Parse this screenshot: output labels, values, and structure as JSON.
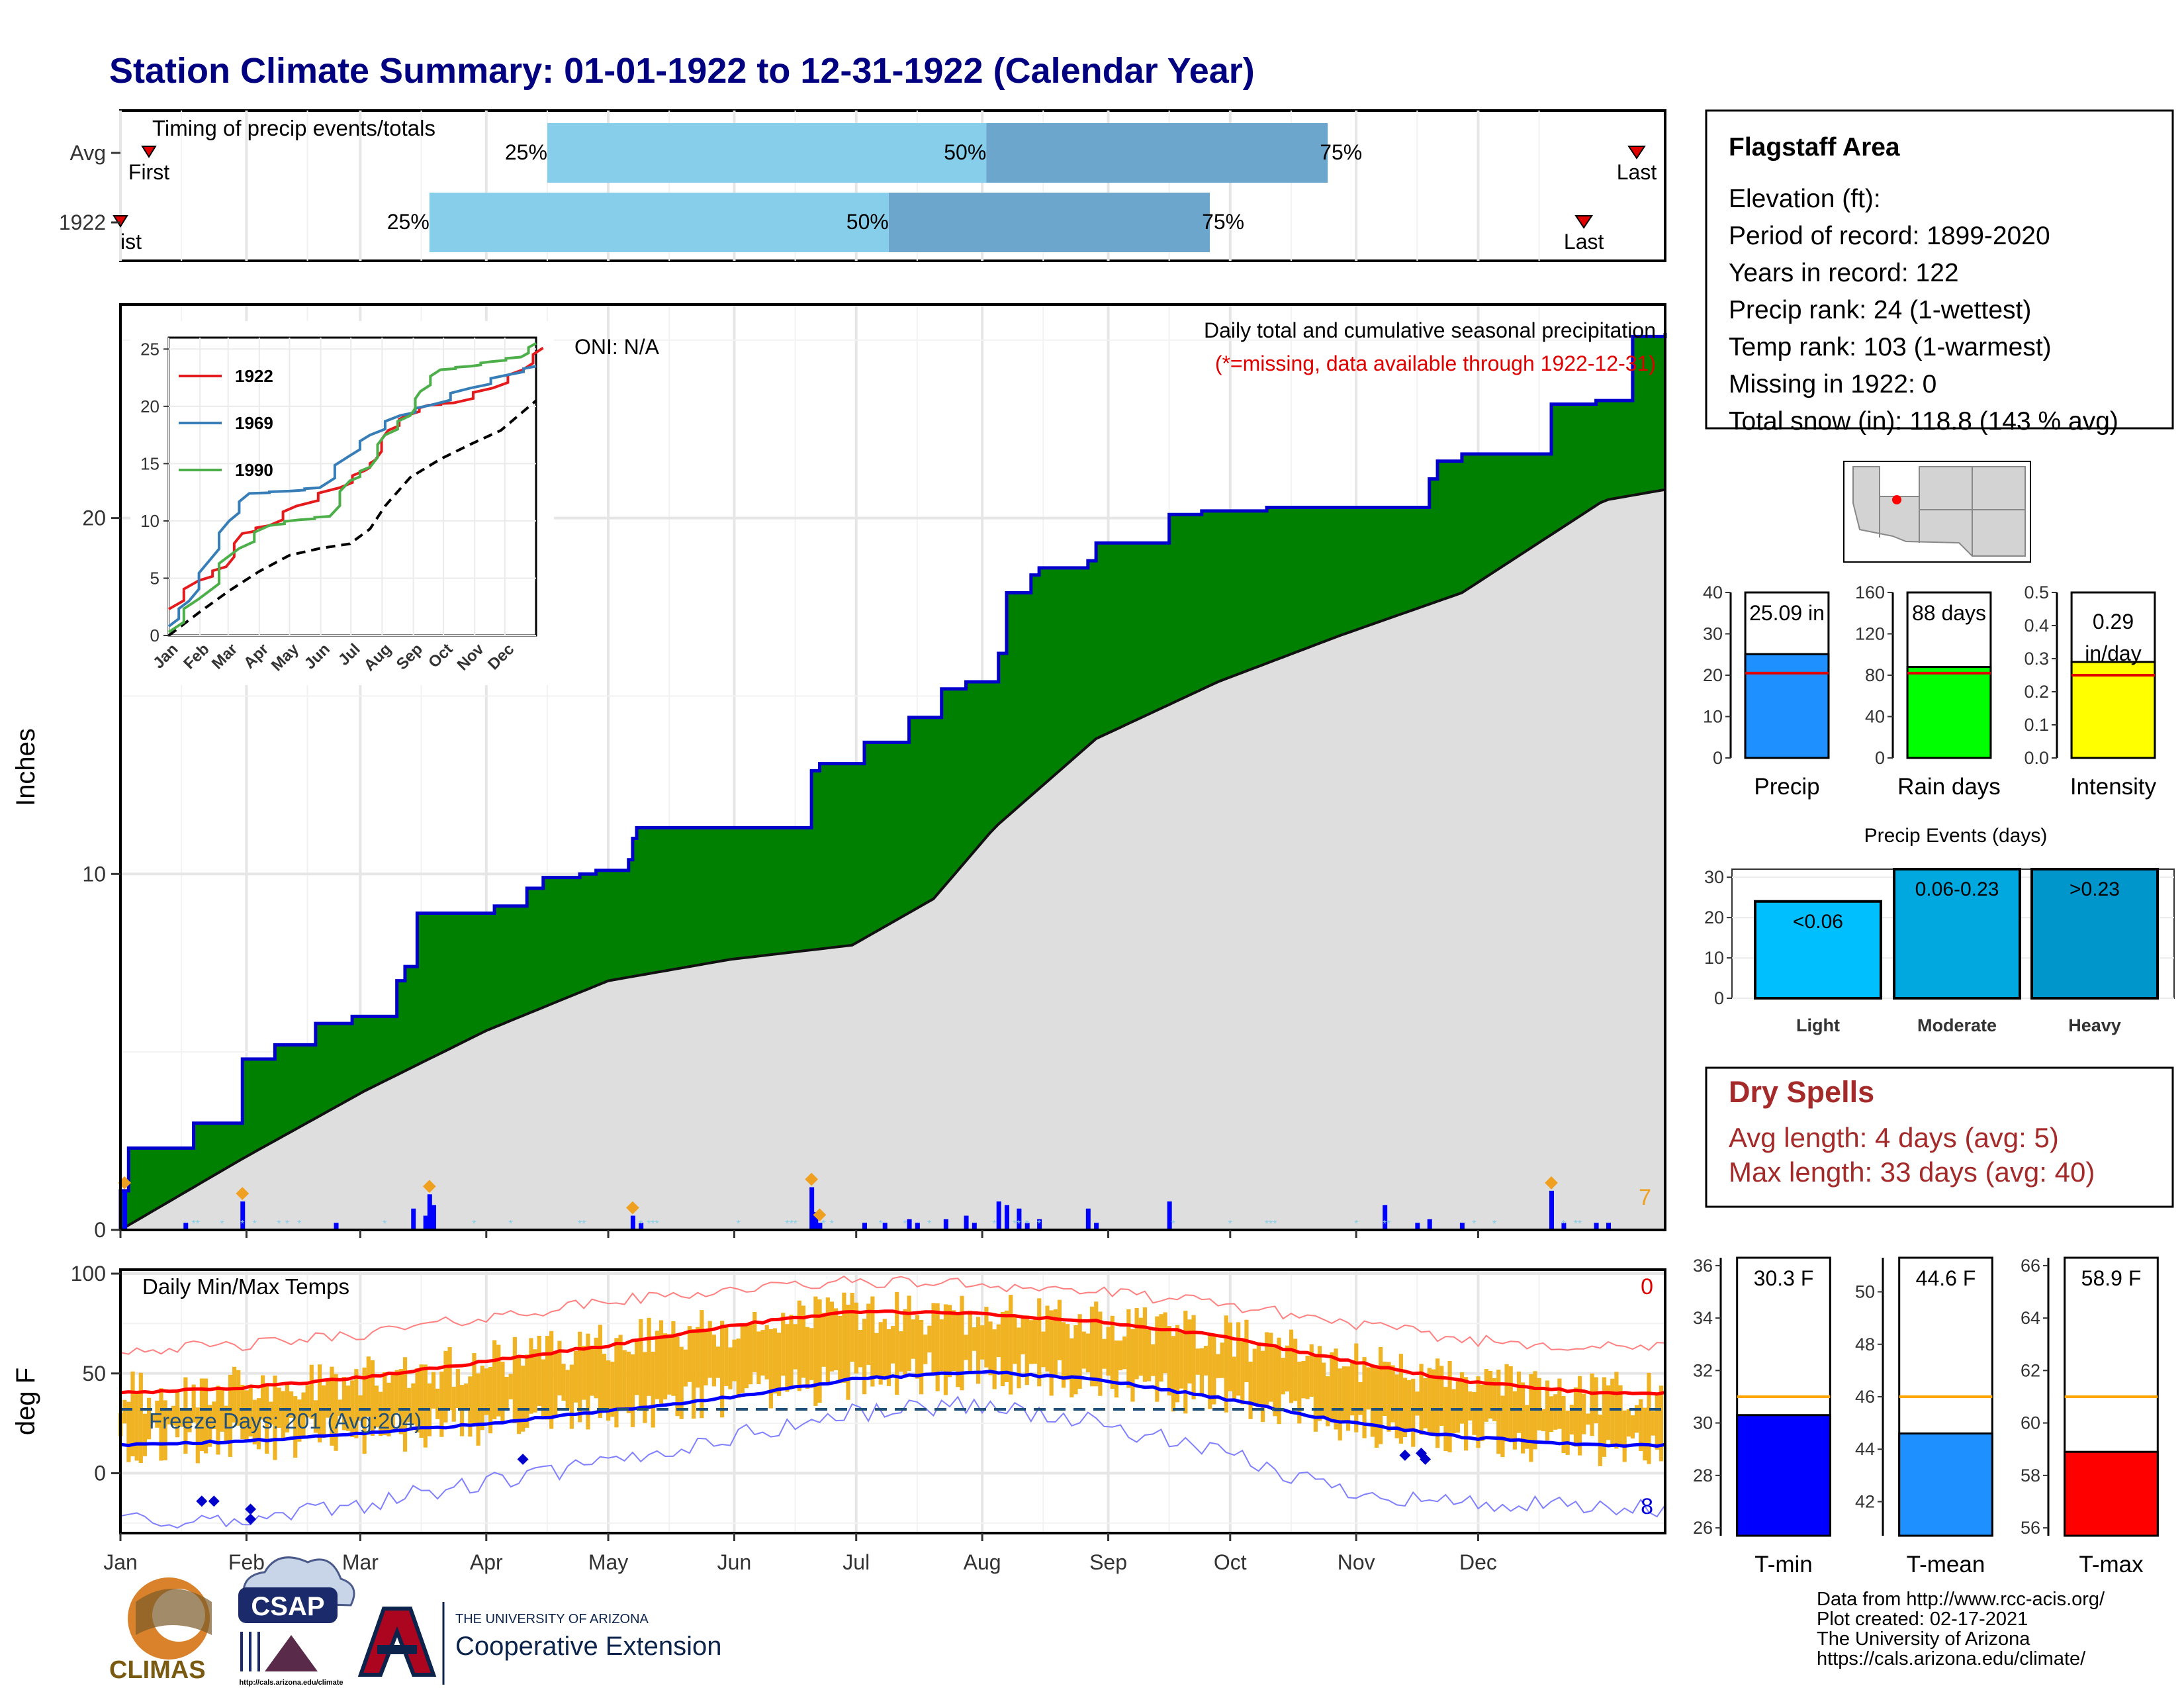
{
  "header": {
    "title": "Station Climate Summary: 01-01-1922 to 12-31-1922 (Calendar Year)"
  },
  "timing": {
    "title": "Timing of precip events/totals",
    "rows": [
      {
        "label": "Avg",
        "first": 7,
        "p25": 105,
        "p50": 213,
        "p75": 297,
        "last": 373,
        "first_label": "First",
        "last_label": "Last"
      },
      {
        "label": "1922",
        "first": 0,
        "p25": 76,
        "p50": 189,
        "p75": 268,
        "last": 360,
        "first_label": "ist",
        "last_label": "Last"
      }
    ],
    "pct_labels": [
      "25%",
      "50%",
      "75%"
    ]
  },
  "chart_data": [
    {
      "type": "area",
      "name": "cumulative-precip",
      "title": "Daily total and cumulative seasonal precipitation",
      "subtitle": "(*=missing, data available through 1922-12-31)",
      "ylabel": "Inches",
      "ylim": [
        0,
        26
      ],
      "yticks": [
        0,
        10,
        20
      ],
      "oni_label": "ONI: N/A",
      "corner_count": "7",
      "months": [
        "Jan",
        "Feb",
        "Mar",
        "Apr",
        "May",
        "Jun",
        "Jul",
        "Aug",
        "Sep",
        "Oct",
        "Nov",
        "Dec"
      ],
      "cumulative_steps": [
        [
          0,
          1.1
        ],
        [
          2,
          2.3
        ],
        [
          18,
          3.0
        ],
        [
          30,
          4.8
        ],
        [
          38,
          5.2
        ],
        [
          48,
          5.8
        ],
        [
          57,
          6.0
        ],
        [
          68,
          7.0
        ],
        [
          70,
          7.4
        ],
        [
          73,
          8.9
        ],
        [
          92,
          9.1
        ],
        [
          100,
          9.6
        ],
        [
          104,
          9.9
        ],
        [
          113,
          10.0
        ],
        [
          117,
          10.1
        ],
        [
          125,
          10.4
        ],
        [
          126,
          11.0
        ],
        [
          127,
          11.3
        ],
        [
          170,
          12.9
        ],
        [
          172,
          13.1
        ],
        [
          183,
          13.7
        ],
        [
          194,
          14.4
        ],
        [
          202,
          15.2
        ],
        [
          208,
          15.4
        ],
        [
          216,
          16.2
        ],
        [
          218,
          17.9
        ],
        [
          224,
          18.4
        ],
        [
          226,
          18.6
        ],
        [
          238,
          18.8
        ],
        [
          240,
          19.3
        ],
        [
          258,
          20.1
        ],
        [
          266,
          20.2
        ],
        [
          282,
          20.3
        ],
        [
          322,
          21.1
        ],
        [
          324,
          21.6
        ],
        [
          330,
          21.8
        ],
        [
          352,
          23.2
        ],
        [
          363,
          23.3
        ],
        [
          372,
          25.1
        ],
        [
          380,
          25.2
        ]
      ],
      "normal_cumulative": [
        [
          0,
          0
        ],
        [
          30,
          2.0
        ],
        [
          60,
          3.9
        ],
        [
          90,
          5.6
        ],
        [
          120,
          7.0
        ],
        [
          150,
          7.6
        ],
        [
          180,
          8.0
        ],
        [
          200,
          9.3
        ],
        [
          215,
          11.3
        ],
        [
          240,
          13.8
        ],
        [
          270,
          15.4
        ],
        [
          300,
          16.7
        ],
        [
          330,
          17.9
        ],
        [
          365,
          20.5
        ]
      ],
      "daily_bars": [
        [
          1,
          1.1
        ],
        [
          16,
          0.2
        ],
        [
          30,
          0.8
        ],
        [
          53,
          0.2
        ],
        [
          72,
          0.6
        ],
        [
          75,
          0.4
        ],
        [
          76,
          1.0
        ],
        [
          77,
          0.7
        ],
        [
          126,
          0.4
        ],
        [
          128,
          0.2
        ],
        [
          170,
          1.2
        ],
        [
          171,
          0.5
        ],
        [
          172,
          0.2
        ],
        [
          183,
          0.2
        ],
        [
          188,
          0.2
        ],
        [
          194,
          0.3
        ],
        [
          196,
          0.2
        ],
        [
          203,
          0.3
        ],
        [
          208,
          0.4
        ],
        [
          210,
          0.2
        ],
        [
          216,
          0.8
        ],
        [
          218,
          0.7
        ],
        [
          221,
          0.6
        ],
        [
          223,
          0.2
        ],
        [
          226,
          0.3
        ],
        [
          238,
          0.6
        ],
        [
          240,
          0.2
        ],
        [
          258,
          0.8
        ],
        [
          311,
          0.7
        ],
        [
          319,
          0.2
        ],
        [
          322,
          0.3
        ],
        [
          330,
          0.2
        ],
        [
          352,
          1.1
        ],
        [
          355,
          0.2
        ],
        [
          363,
          0.2
        ],
        [
          366,
          0.2
        ]
      ]
    },
    {
      "type": "line",
      "name": "cumulative-inset",
      "ylim": [
        0,
        26
      ],
      "yticks": [
        0,
        5,
        10,
        15,
        20,
        25
      ],
      "months": [
        "Jan",
        "Feb",
        "Mar",
        "Apr",
        "May",
        "Jun",
        "Jul",
        "Aug",
        "Sep",
        "Oct",
        "Nov",
        "Dec"
      ],
      "series": [
        {
          "name": "1922",
          "color": "#e41a1c",
          "points": [
            [
              0,
              2.3
            ],
            [
              30,
              4.8
            ],
            [
              57,
              6.0
            ],
            [
              73,
              8.9
            ],
            [
              100,
              9.6
            ],
            [
              127,
              11.3
            ],
            [
              170,
              12.9
            ],
            [
              195,
              14.4
            ],
            [
              205,
              15.3
            ],
            [
              218,
              17.9
            ],
            [
              240,
              19.3
            ],
            [
              258,
              20.1
            ],
            [
              283,
              20.3
            ],
            [
              322,
              21.6
            ],
            [
              352,
              23.2
            ],
            [
              372,
              25.1
            ]
          ]
        },
        {
          "name": "1969",
          "color": "#377eb8",
          "points": [
            [
              0,
              0.8
            ],
            [
              20,
              3.0
            ],
            [
              40,
              6.5
            ],
            [
              60,
              10.0
            ],
            [
              80,
              12.4
            ],
            [
              120,
              12.6
            ],
            [
              150,
              12.9
            ],
            [
              180,
              15.7
            ],
            [
              200,
              17.5
            ],
            [
              230,
              19.2
            ],
            [
              260,
              20.1
            ],
            [
              300,
              21.6
            ],
            [
              340,
              22.8
            ],
            [
              365,
              23.5
            ]
          ]
        },
        {
          "name": "1990",
          "color": "#4daf4a",
          "points": [
            [
              0,
              0.3
            ],
            [
              30,
              3.2
            ],
            [
              70,
              7.6
            ],
            [
              100,
              9.6
            ],
            [
              130,
              10.1
            ],
            [
              160,
              10.4
            ],
            [
              180,
              13.5
            ],
            [
              200,
              14.7
            ],
            [
              215,
              17.5
            ],
            [
              240,
              19.2
            ],
            [
              250,
              21.3
            ],
            [
              270,
              23.2
            ],
            [
              300,
              23.5
            ],
            [
              320,
              23.9
            ],
            [
              350,
              24.3
            ],
            [
              365,
              25.5
            ]
          ]
        }
      ],
      "normal": [
        [
          0,
          0
        ],
        [
          30,
          2.0
        ],
        [
          60,
          3.9
        ],
        [
          90,
          5.6
        ],
        [
          120,
          7.0
        ],
        [
          150,
          7.6
        ],
        [
          180,
          8.0
        ],
        [
          200,
          9.3
        ],
        [
          215,
          11.3
        ],
        [
          240,
          13.8
        ],
        [
          270,
          15.4
        ],
        [
          300,
          16.7
        ],
        [
          330,
          17.9
        ],
        [
          365,
          20.5
        ]
      ]
    },
    {
      "type": "line",
      "name": "daily-temps",
      "title": "Daily Min/Max Temps",
      "ylabel": "deg F",
      "ylim": [
        -30,
        102
      ],
      "yticks": [
        0,
        50,
        100
      ],
      "freeze_label": "Freeze Days: 201 (Avg:204)",
      "freeze_line": 32,
      "corner_max_count": "0",
      "corner_min_count": "8",
      "months": [
        "Jan",
        "Feb",
        "Mar",
        "Apr",
        "May",
        "Jun",
        "Jul",
        "Aug",
        "Sep",
        "Oct",
        "Nov",
        "Dec"
      ],
      "normal_max": [
        [
          0,
          40
        ],
        [
          30,
          43
        ],
        [
          60,
          48
        ],
        [
          90,
          56
        ],
        [
          120,
          64
        ],
        [
          150,
          74
        ],
        [
          180,
          81
        ],
        [
          210,
          80
        ],
        [
          240,
          76
        ],
        [
          270,
          69
        ],
        [
          300,
          57
        ],
        [
          330,
          46
        ],
        [
          365,
          40
        ]
      ],
      "normal_min": [
        [
          0,
          14
        ],
        [
          30,
          16
        ],
        [
          60,
          20
        ],
        [
          90,
          25
        ],
        [
          120,
          31
        ],
        [
          150,
          38
        ],
        [
          180,
          47
        ],
        [
          210,
          51
        ],
        [
          240,
          47
        ],
        [
          270,
          38
        ],
        [
          300,
          26
        ],
        [
          330,
          18
        ],
        [
          365,
          14
        ]
      ],
      "record_max": [
        [
          0,
          62
        ],
        [
          30,
          64
        ],
        [
          60,
          70
        ],
        [
          90,
          78
        ],
        [
          120,
          86
        ],
        [
          150,
          92
        ],
        [
          180,
          96
        ],
        [
          210,
          95
        ],
        [
          240,
          91
        ],
        [
          270,
          85
        ],
        [
          300,
          76
        ],
        [
          330,
          67
        ],
        [
          365,
          63
        ]
      ],
      "record_min": [
        [
          0,
          -22
        ],
        [
          30,
          -25
        ],
        [
          60,
          -15
        ],
        [
          90,
          -5
        ],
        [
          120,
          5
        ],
        [
          150,
          18
        ],
        [
          180,
          30
        ],
        [
          210,
          35
        ],
        [
          240,
          25
        ],
        [
          270,
          10
        ],
        [
          300,
          -8
        ],
        [
          330,
          -15
        ],
        [
          365,
          -18
        ]
      ],
      "missing_marks": [
        [
          20,
          -14
        ],
        [
          23,
          -14
        ],
        [
          32,
          -18
        ],
        [
          32,
          -23
        ],
        [
          99,
          7
        ],
        [
          316,
          9
        ],
        [
          320,
          10
        ],
        [
          321,
          7
        ]
      ]
    },
    {
      "type": "bar",
      "name": "precip-total",
      "categories": [
        "Precip"
      ],
      "values": [
        25.09
      ],
      "normal": 20.5,
      "value_label": "25.09 in",
      "ylim": [
        0,
        40
      ],
      "yticks": [
        0,
        10,
        20,
        30,
        40
      ],
      "color": "#1e90ff"
    },
    {
      "type": "bar",
      "name": "rain-days",
      "categories": [
        "Rain days"
      ],
      "values": [
        88
      ],
      "normal": 82,
      "value_label": "88 days",
      "ylim": [
        0,
        160
      ],
      "yticks": [
        0,
        40,
        80,
        120,
        160
      ],
      "color": "#00ff00"
    },
    {
      "type": "bar",
      "name": "intensity",
      "categories": [
        "Intensity"
      ],
      "values": [
        0.29
      ],
      "normal": 0.25,
      "value_label_1": "0.29",
      "value_label_2": "in/day",
      "ylim": [
        0,
        0.5
      ],
      "yticks": [
        0.0,
        0.1,
        0.2,
        0.3,
        0.4,
        0.5
      ],
      "color": "#ffff00"
    },
    {
      "type": "bar",
      "name": "precip-events",
      "title": "Precip Events (days)",
      "categories": [
        "Light",
        "Moderate",
        "Heavy"
      ],
      "values": [
        24,
        33,
        33
      ],
      "bar_labels": [
        "<0.06",
        "0.06-0.23",
        ">0.23"
      ],
      "colors": [
        "#00bfff",
        "#00a8e0",
        "#0096cc"
      ],
      "ylim": [
        0,
        32
      ],
      "yticks": [
        0,
        10,
        20,
        30
      ]
    },
    {
      "type": "bar",
      "name": "t-min",
      "categories": [
        "T-min"
      ],
      "values": [
        30.3
      ],
      "normal": 31.0,
      "value_label": "30.3 F",
      "ylim": [
        25.7,
        36.3
      ],
      "yticks": [
        26,
        28,
        30,
        32,
        34,
        36
      ],
      "color": "#0000ff"
    },
    {
      "type": "bar",
      "name": "t-mean",
      "categories": [
        "T-mean"
      ],
      "values": [
        44.6
      ],
      "normal": 46.0,
      "value_label": "44.6 F",
      "ylim": [
        40.7,
        51.3
      ],
      "yticks": [
        42,
        44,
        46,
        48,
        50
      ],
      "color": "#1e90ff"
    },
    {
      "type": "bar",
      "name": "t-max",
      "categories": [
        "T-max"
      ],
      "values": [
        58.9
      ],
      "normal": 61.0,
      "value_label": "58.9 F",
      "ylim": [
        55.7,
        66.3
      ],
      "yticks": [
        56,
        58,
        60,
        62,
        64,
        66
      ],
      "color": "#ff0000"
    }
  ],
  "station": {
    "name": "Flagstaff Area",
    "lines": [
      "Elevation (ft):",
      "Period of record: 1899-2020",
      "Years in record: 122",
      "Precip rank: 24 (1-wettest)",
      "Temp rank: 103 (1-warmest)",
      "Missing in 1922: 0",
      "Total snow (in): 118.8 (143 % avg)"
    ]
  },
  "dry_spells": {
    "title": "Dry Spells",
    "lines": [
      "Avg length: 4 days (avg: 5)",
      "Max length: 33 days (avg: 40)"
    ]
  },
  "footer": {
    "logos": {
      "climas": "CLIMAS",
      "csap": "CSAP",
      "csap_url": "http://cals.arizona.edu/climate",
      "ua_line1": "THE UNIVERSITY OF ARIZONA",
      "ua_line2": "Cooperative Extension"
    },
    "credits": [
      "Data from http://www.rcc-acis.org/",
      "Plot created: 02-17-2021",
      "The University of Arizona",
      "https://cals.arizona.edu/climate/"
    ]
  },
  "colors": {
    "title": "#000080",
    "green_fill": "#008000",
    "blue_line": "#0000cd",
    "gray_fill": "#dedede",
    "timing_light": "#87ceeb",
    "timing_dark": "#6ca6cd",
    "temp_bar": "#f0b323",
    "dry_red": "#a52a2a"
  }
}
